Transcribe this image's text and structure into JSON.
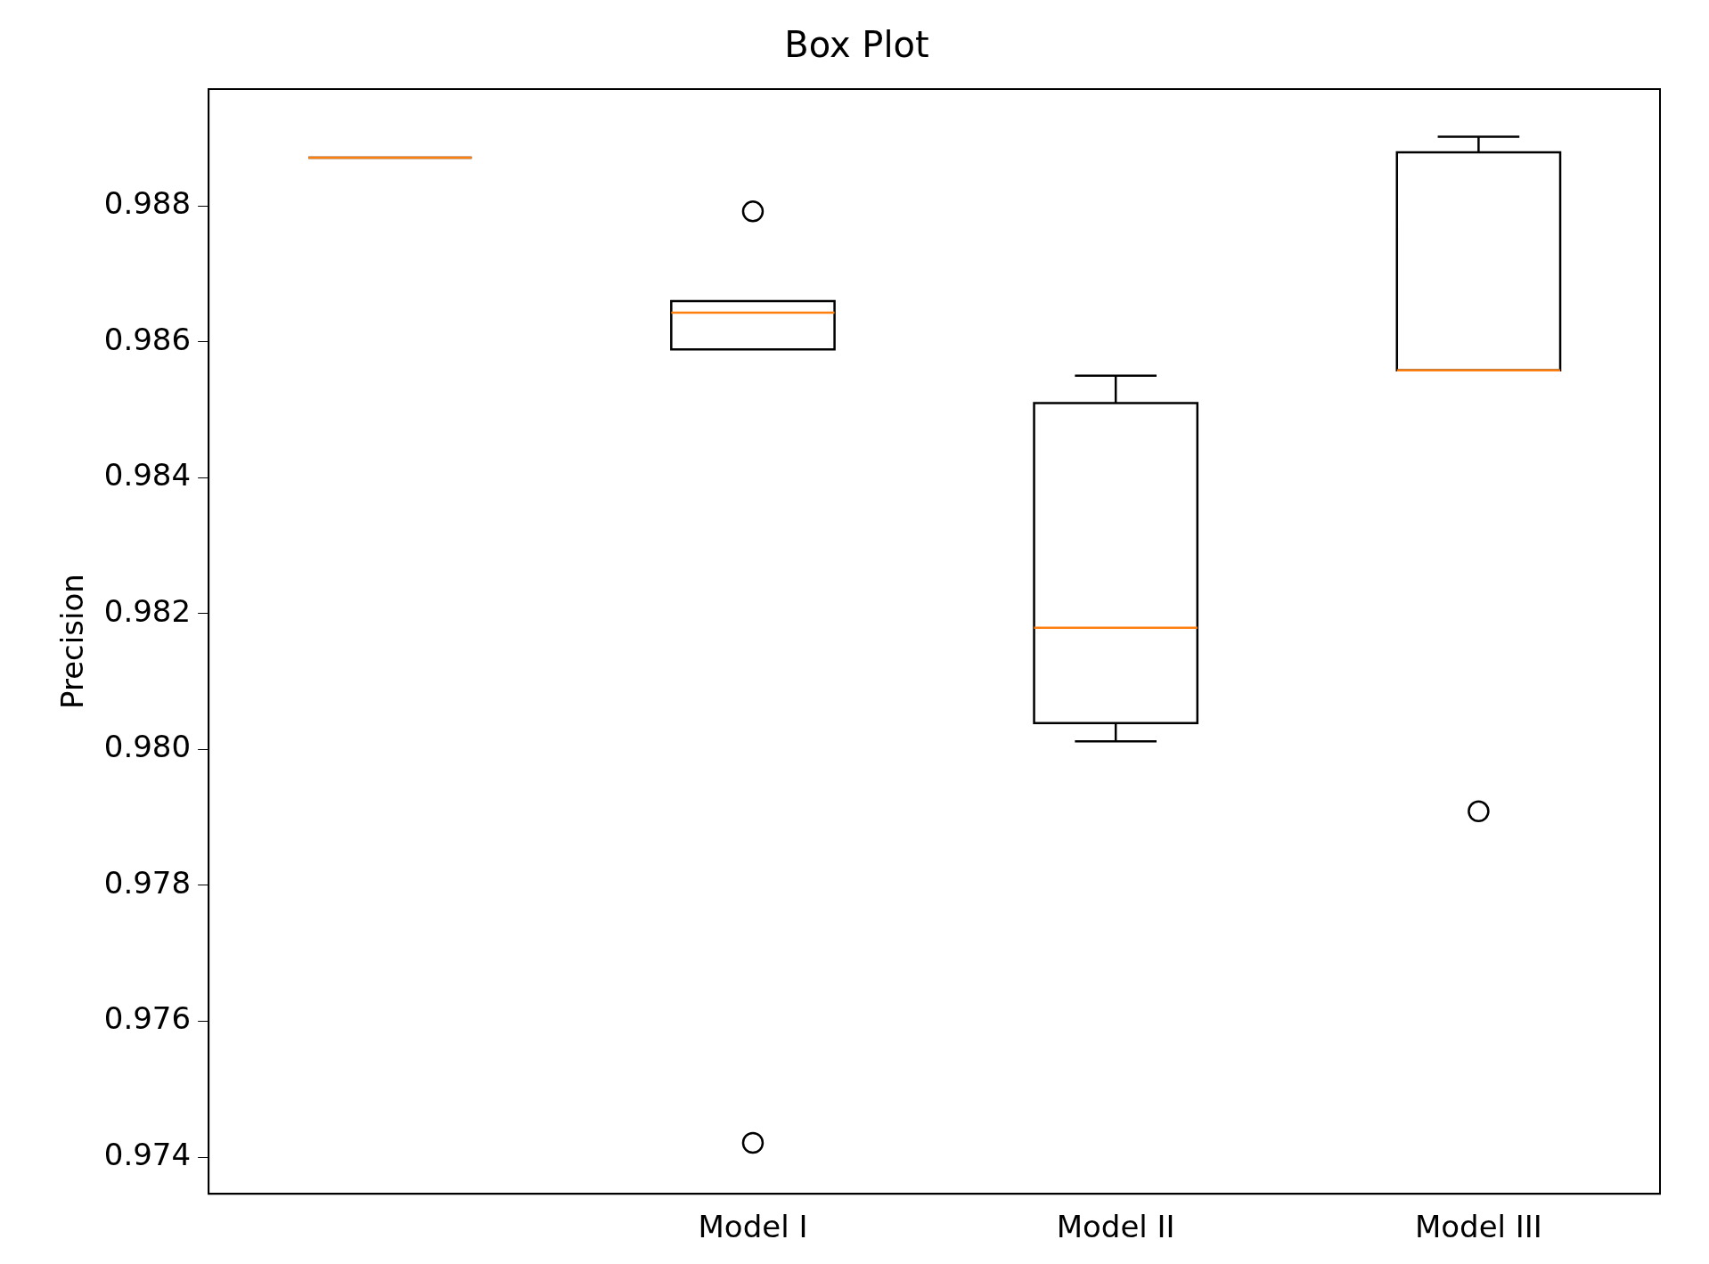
{
  "chart_data": {
    "type": "box",
    "title": "Box Plot",
    "ylabel": "Precision",
    "categories": [
      null,
      "Model I",
      "Model II",
      "Model III"
    ],
    "series": [
      {
        "color": "#000000",
        "boxes": [
          {
            "low": 0.98871,
            "q1": 0.98871,
            "median": 0.98871,
            "q3": 0.98871,
            "high": 0.98871
          },
          {
            "low": 0.98589,
            "q1": 0.98589,
            "median": 0.98643,
            "q3": 0.9866,
            "high": 0.9866,
            "outliers": [
              0.98792,
              0.97421
            ]
          },
          {
            "low": 0.98012,
            "q1": 0.98039,
            "median": 0.98179,
            "q3": 0.9851,
            "high": 0.9855
          },
          {
            "low": 0.98558,
            "q1": 0.98558,
            "median": 0.98558,
            "q3": 0.98879,
            "high": 0.98902,
            "outliers": [
              0.97909
            ]
          }
        ]
      }
    ],
    "ylim": [
      0.97346,
      0.98972
    ],
    "yticks": [
      0.974,
      0.976,
      0.978,
      {
        "value": 0.98,
        "label": "0.980"
      },
      0.982,
      0.984,
      0.986,
      0.988
    ],
    "grid": false,
    "legend": false,
    "marker": "circle"
  }
}
